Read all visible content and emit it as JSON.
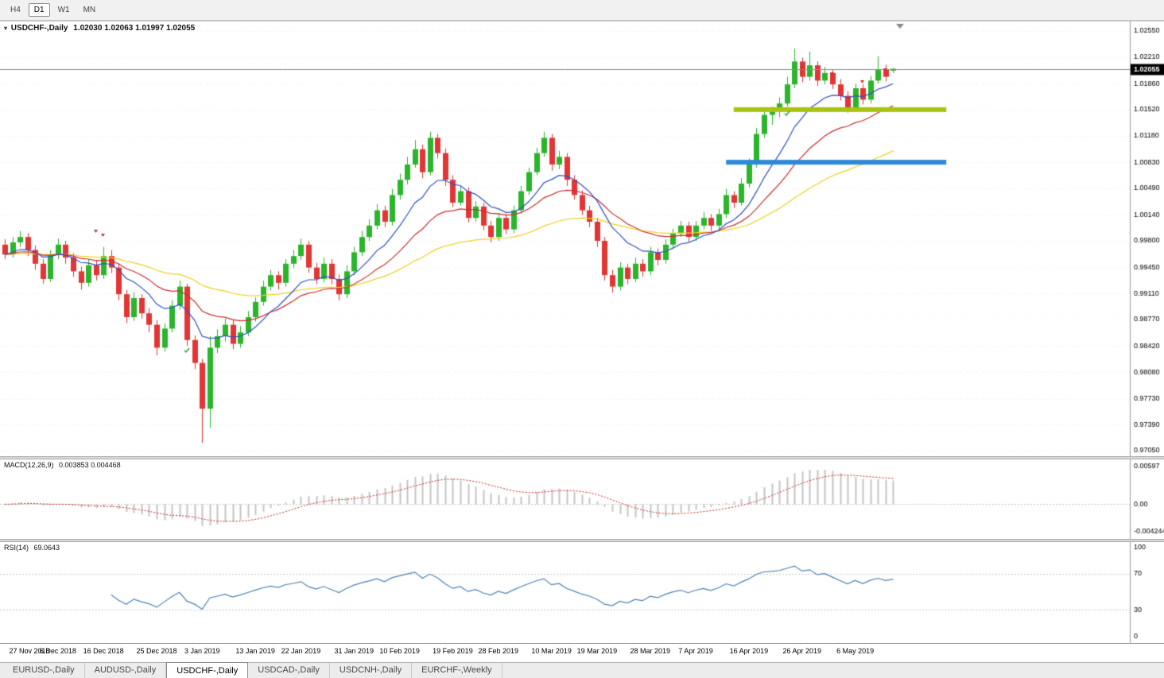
{
  "toolbar": {
    "timeframes": [
      {
        "label": "H4",
        "active": false
      },
      {
        "label": "D1",
        "active": true
      },
      {
        "label": "W1",
        "active": false
      },
      {
        "label": "MN",
        "active": false
      }
    ]
  },
  "chart": {
    "title": "USDCHF-,Daily",
    "ohlc_display": "1.02030 1.02063 1.01997 1.02055",
    "current_price_label": "1.02055",
    "price_ticks": [
      "1.02550",
      "1.02210",
      "1.01860",
      "1.01520",
      "1.01180",
      "1.00830",
      "1.00490",
      "1.00140",
      "0.99800",
      "0.99450",
      "0.99110",
      "0.98770",
      "0.98420",
      "0.98080",
      "0.97730",
      "0.97390",
      "0.97050"
    ]
  },
  "macd": {
    "label": "MACD(12,26,9)",
    "values": "0.003853 0.004468",
    "params": {
      "fast": 12,
      "slow": 26,
      "signal": 9
    },
    "scale": {
      "min": -0.0047,
      "max": 0.0063
    },
    "ticks": [
      {
        "label": "0.00597",
        "v": 0.00597
      },
      {
        "label": "0.00",
        "v": 0
      },
      {
        "label": "-0.0042443",
        "v": -0.0042443
      }
    ]
  },
  "rsi": {
    "label": "RSI(14)",
    "value": "69.0643",
    "period": 14,
    "levels": [
      70,
      30
    ],
    "ticks": [
      {
        "label": "100",
        "v": 100
      },
      {
        "label": "70",
        "v": 70
      },
      {
        "label": "30",
        "v": 30
      },
      {
        "label": "0",
        "v": 0
      }
    ]
  },
  "tabs": [
    {
      "label": "EURUSD-,Daily",
      "active": false
    },
    {
      "label": "AUDUSD-,Daily",
      "active": false
    },
    {
      "label": "USDCHF-,Daily",
      "active": true
    },
    {
      "label": "USDCAD-,Daily",
      "active": false
    },
    {
      "label": "USDCNH-,Daily",
      "active": false
    },
    {
      "label": "EURCHF-,Weekly",
      "active": false
    }
  ],
  "colors": {
    "bull": "#2bb52b",
    "bear": "#e23535",
    "ma_fast": "#3050c8",
    "ma_mid": "#cc2f2f",
    "ma_slow": "#f0d020",
    "macd_hist": "#c4c4c4",
    "macd_signal": "#cc2222",
    "rsi_line": "#4f81b4",
    "grid": "#ededed",
    "axis_line": "#9a9a9a",
    "price_line": "#8c8c8c",
    "badge_bg": "#000000",
    "badge_text": "#ffffff",
    "hline_green": "#a9c410",
    "hline_blue": "#2d89d8"
  },
  "chart_data": {
    "type": "candlestick",
    "symbol": "USDCHF-",
    "timeframe": "Daily",
    "price_top": 1.0255,
    "price_bottom": 0.9705,
    "current_price": 1.02055,
    "ma_periods": [
      10,
      21,
      50
    ],
    "ohlc": [
      [
        0.9975,
        0.9982,
        0.9956,
        0.9962
      ],
      [
        0.9962,
        0.9985,
        0.9958,
        0.9978
      ],
      [
        0.9978,
        0.9993,
        0.9972,
        0.9985
      ],
      [
        0.9985,
        0.999,
        0.996,
        0.9968
      ],
      [
        0.9968,
        0.9974,
        0.9942,
        0.995
      ],
      [
        0.995,
        0.9956,
        0.9924,
        0.993
      ],
      [
        0.993,
        0.9968,
        0.9926,
        0.9962
      ],
      [
        0.9962,
        0.9983,
        0.9956,
        0.9975
      ],
      [
        0.9975,
        0.998,
        0.995,
        0.9958
      ],
      [
        0.9958,
        0.9964,
        0.9933,
        0.994
      ],
      [
        0.994,
        0.9946,
        0.9916,
        0.9925
      ],
      [
        0.9925,
        0.9956,
        0.992,
        0.9948
      ],
      [
        0.9948,
        0.9955,
        0.9928,
        0.9935
      ],
      [
        0.9935,
        0.9972,
        0.993,
        0.996
      ],
      [
        0.996,
        0.9968,
        0.9938,
        0.9945
      ],
      [
        0.9945,
        0.995,
        0.9902,
        0.991
      ],
      [
        0.991,
        0.9916,
        0.9872,
        0.988
      ],
      [
        0.988,
        0.9913,
        0.9875,
        0.9905
      ],
      [
        0.9905,
        0.991,
        0.9878,
        0.9885
      ],
      [
        0.9885,
        0.9892,
        0.986,
        0.987
      ],
      [
        0.987,
        0.9876,
        0.983,
        0.984
      ],
      [
        0.984,
        0.9872,
        0.9835,
        0.9865
      ],
      [
        0.9865,
        0.9902,
        0.986,
        0.9895
      ],
      [
        0.9895,
        0.9928,
        0.989,
        0.992
      ],
      [
        0.992,
        0.9924,
        0.9842,
        0.985
      ],
      [
        0.985,
        0.9856,
        0.9812,
        0.982
      ],
      [
        0.982,
        0.9825,
        0.9715,
        0.976
      ],
      [
        0.976,
        0.9855,
        0.9735,
        0.984
      ],
      [
        0.984,
        0.9864,
        0.9833,
        0.9855
      ],
      [
        0.9855,
        0.9878,
        0.9848,
        0.987
      ],
      [
        0.987,
        0.9876,
        0.9838,
        0.9845
      ],
      [
        0.9845,
        0.9868,
        0.984,
        0.986
      ],
      [
        0.986,
        0.9888,
        0.9855,
        0.988
      ],
      [
        0.988,
        0.9906,
        0.9874,
        0.99
      ],
      [
        0.99,
        0.9928,
        0.9895,
        0.992
      ],
      [
        0.992,
        0.9942,
        0.9915,
        0.9935
      ],
      [
        0.9935,
        0.994,
        0.9916,
        0.9925
      ],
      [
        0.9925,
        0.9956,
        0.992,
        0.995
      ],
      [
        0.995,
        0.9968,
        0.9944,
        0.996
      ],
      [
        0.996,
        0.9983,
        0.9955,
        0.9975
      ],
      [
        0.9975,
        0.998,
        0.9938,
        0.9945
      ],
      [
        0.9945,
        0.9951,
        0.9923,
        0.993
      ],
      [
        0.993,
        0.9958,
        0.9925,
        0.995
      ],
      [
        0.995,
        0.9956,
        0.9923,
        0.993
      ],
      [
        0.993,
        0.9936,
        0.9902,
        0.991
      ],
      [
        0.991,
        0.9948,
        0.9905,
        0.994
      ],
      [
        0.994,
        0.9972,
        0.9935,
        0.9965
      ],
      [
        0.9965,
        0.9993,
        0.996,
        0.9985
      ],
      [
        0.9985,
        1.0008,
        0.998,
        1.0
      ],
      [
        1.0,
        1.0028,
        0.9995,
        1.002
      ],
      [
        1.002,
        1.0026,
        0.9998,
        1.0005
      ],
      [
        1.0005,
        1.0048,
        1.0,
        1.004
      ],
      [
        1.004,
        1.0068,
        1.0034,
        1.006
      ],
      [
        1.006,
        1.009,
        1.0054,
        1.008
      ],
      [
        1.008,
        1.0112,
        1.0076,
        1.01
      ],
      [
        1.01,
        1.0106,
        1.0062,
        1.007
      ],
      [
        1.007,
        1.0123,
        1.0066,
        1.0115
      ],
      [
        1.0115,
        1.012,
        1.0088,
        1.0095
      ],
      [
        1.0095,
        1.0101,
        1.0052,
        1.006
      ],
      [
        1.006,
        1.0066,
        1.0024,
        1.003
      ],
      [
        1.003,
        1.0052,
        1.0026,
        1.0045
      ],
      [
        1.0045,
        1.005,
        1.0004,
        1.001
      ],
      [
        1.001,
        1.0032,
        1.0005,
        1.0025
      ],
      [
        1.0025,
        1.003,
        0.9994,
        1.0
      ],
      [
        1.0,
        1.0006,
        0.9978,
        0.9985
      ],
      [
        0.9985,
        1.0016,
        0.998,
        1.001
      ],
      [
        1.001,
        1.0015,
        0.9989,
        0.9995
      ],
      [
        0.9995,
        1.0026,
        0.999,
        1.002
      ],
      [
        1.002,
        1.0052,
        1.0016,
        1.0045
      ],
      [
        1.0045,
        1.0076,
        1.004,
        1.007
      ],
      [
        1.007,
        1.0102,
        1.0066,
        1.0095
      ],
      [
        1.0095,
        1.0123,
        1.009,
        1.0115
      ],
      [
        1.0115,
        1.012,
        1.0072,
        1.008
      ],
      [
        1.008,
        1.0098,
        1.0074,
        1.009
      ],
      [
        1.009,
        1.0095,
        1.0052,
        1.006
      ],
      [
        1.006,
        1.0066,
        1.0034,
        1.004
      ],
      [
        1.004,
        1.0046,
        1.0014,
        1.002
      ],
      [
        1.002,
        1.0026,
        0.9998,
        1.0005
      ],
      [
        1.0005,
        1.001,
        0.9972,
        0.998
      ],
      [
        0.998,
        0.9985,
        0.9928,
        0.9935
      ],
      [
        0.9935,
        0.9942,
        0.9912,
        0.992
      ],
      [
        0.992,
        0.9952,
        0.9915,
        0.9945
      ],
      [
        0.9945,
        0.995,
        0.9923,
        0.993
      ],
      [
        0.993,
        0.9958,
        0.9926,
        0.995
      ],
      [
        0.995,
        0.9956,
        0.9933,
        0.994
      ],
      [
        0.994,
        0.9972,
        0.9935,
        0.9965
      ],
      [
        0.9965,
        0.997,
        0.9948,
        0.9955
      ],
      [
        0.9955,
        0.9982,
        0.995,
        0.9975
      ],
      [
        0.9975,
        0.9996,
        0.997,
        0.999
      ],
      [
        0.999,
        1.0006,
        0.9985,
        1.0
      ],
      [
        1.0,
        1.0005,
        0.9979,
        0.9985
      ],
      [
        0.9985,
        1.0006,
        0.998,
        1.0
      ],
      [
        1.0,
        1.0018,
        0.9995,
        1.001
      ],
      [
        1.001,
        1.0015,
        0.9993,
        1.0
      ],
      [
        1.0,
        1.0022,
        0.9995,
        1.0015
      ],
      [
        1.0015,
        1.0048,
        1.001,
        1.004
      ],
      [
        1.004,
        1.0045,
        1.0023,
        1.003
      ],
      [
        1.003,
        1.0062,
        1.0026,
        1.0055
      ],
      [
        1.0055,
        1.0088,
        1.005,
        1.008
      ],
      [
        1.008,
        1.0128,
        1.0076,
        1.012
      ],
      [
        1.012,
        1.0152,
        1.0115,
        1.0145
      ],
      [
        1.0145,
        1.0156,
        1.0132,
        1.015
      ],
      [
        1.015,
        1.0168,
        1.0142,
        1.016
      ],
      [
        1.016,
        1.0195,
        1.0156,
        1.0185
      ],
      [
        1.0185,
        1.0232,
        1.018,
        1.0215
      ],
      [
        1.0215,
        1.022,
        1.0188,
        1.0195
      ],
      [
        1.0195,
        1.0228,
        1.019,
        1.021
      ],
      [
        1.021,
        1.0215,
        1.0183,
        1.019
      ],
      [
        1.019,
        1.0208,
        1.0185,
        1.02
      ],
      [
        1.02,
        1.0205,
        1.0179,
        1.0185
      ],
      [
        1.0185,
        1.0192,
        1.0164,
        1.017
      ],
      [
        1.017,
        1.0176,
        1.0148,
        1.0155
      ],
      [
        1.0155,
        1.0186,
        1.015,
        1.018
      ],
      [
        1.018,
        1.0185,
        1.0159,
        1.0165
      ],
      [
        1.0165,
        1.0196,
        1.016,
        1.019
      ],
      [
        1.019,
        1.0222,
        1.0186,
        1.0205
      ],
      [
        1.0205,
        1.0211,
        1.0189,
        1.0195
      ],
      [
        1.0203,
        1.02063,
        1.01997,
        1.02055
      ]
    ],
    "date_labels": [
      {
        "i": 0,
        "label": "27 Nov 2018"
      },
      {
        "i": 7,
        "label": "6 Dec 2018"
      },
      {
        "i": 13,
        "label": "16 Dec 2018"
      },
      {
        "i": 20,
        "label": "25 Dec 2018"
      },
      {
        "i": 26,
        "label": "3 Jan 2019"
      },
      {
        "i": 33,
        "label": "13 Jan 2019"
      },
      {
        "i": 39,
        "label": "22 Jan 2019"
      },
      {
        "i": 46,
        "label": "31 Jan 2019"
      },
      {
        "i": 52,
        "label": "10 Feb 2019"
      },
      {
        "i": 59,
        "label": "19 Feb 2019"
      },
      {
        "i": 65,
        "label": "28 Feb 2019"
      },
      {
        "i": 72,
        "label": "10 Mar 2019"
      },
      {
        "i": 78,
        "label": "19 Mar 2019"
      },
      {
        "i": 85,
        "label": "28 Mar 2019"
      },
      {
        "i": 91,
        "label": "7 Apr 2019"
      },
      {
        "i": 98,
        "label": "16 Apr 2019"
      },
      {
        "i": 105,
        "label": "26 Apr 2019"
      },
      {
        "i": 112,
        "label": "6 May 2019"
      }
    ],
    "hlines": [
      {
        "price": 1.0152,
        "from": 96,
        "to": 124,
        "color": "#a9c410"
      },
      {
        "price": 1.0083,
        "from": 95,
        "to": 124,
        "color": "#2d89d8"
      }
    ],
    "markers": [
      {
        "i": 12,
        "p": 0.9992,
        "color": "#cc3333",
        "kind": "arrow"
      },
      {
        "i": 13,
        "p": 0.9987,
        "color": "#cc3333",
        "kind": "arrow"
      },
      {
        "i": 24,
        "p": 0.9836,
        "color": "#33a033",
        "kind": "check"
      },
      {
        "i": 103,
        "p": 1.0147,
        "color": "#33a033",
        "kind": "check"
      },
      {
        "i": 105,
        "p": 1.0206,
        "color": "#cc3333",
        "kind": "arrow"
      },
      {
        "i": 109,
        "p": 1.0199,
        "color": "#cc3333",
        "kind": "arrow"
      },
      {
        "i": 113,
        "p": 1.0188,
        "color": "#cc3333",
        "kind": "arrow"
      },
      {
        "i": 116,
        "p": 1.0204,
        "color": "#cc3333",
        "kind": "arrow"
      }
    ]
  }
}
